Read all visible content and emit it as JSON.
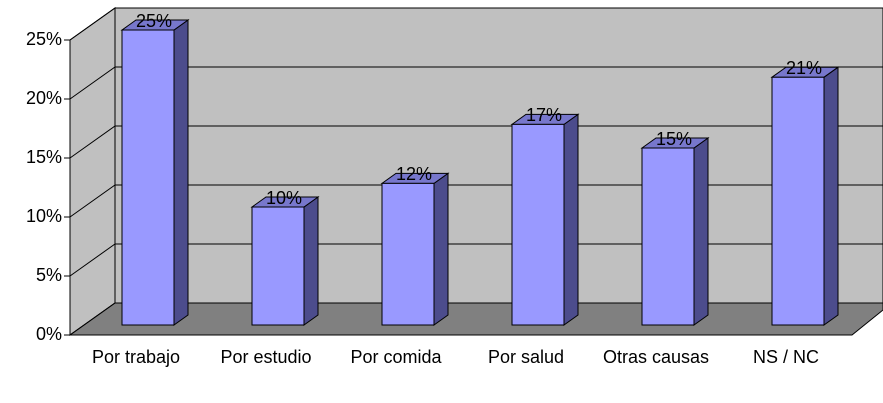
{
  "chart_data": {
    "type": "bar3d",
    "categories": [
      "Por trabajo",
      "Por estudio",
      "Por comida",
      "Por salud",
      "Otras causas",
      "NS / NC"
    ],
    "values": [
      25,
      10,
      12,
      17,
      15,
      21
    ],
    "value_labels": [
      "25%",
      "10%",
      "12%",
      "17%",
      "15%",
      "21%"
    ],
    "color": "#9999ff",
    "ylim": [
      0,
      25
    ],
    "yticks": [
      {
        "value": 0,
        "label": "0%"
      },
      {
        "value": 5,
        "label": "5%"
      },
      {
        "value": 10,
        "label": "10%"
      },
      {
        "value": 15,
        "label": "15%"
      },
      {
        "value": 20,
        "label": "20%"
      },
      {
        "value": 25,
        "label": "25%"
      }
    ],
    "grid": true
  }
}
